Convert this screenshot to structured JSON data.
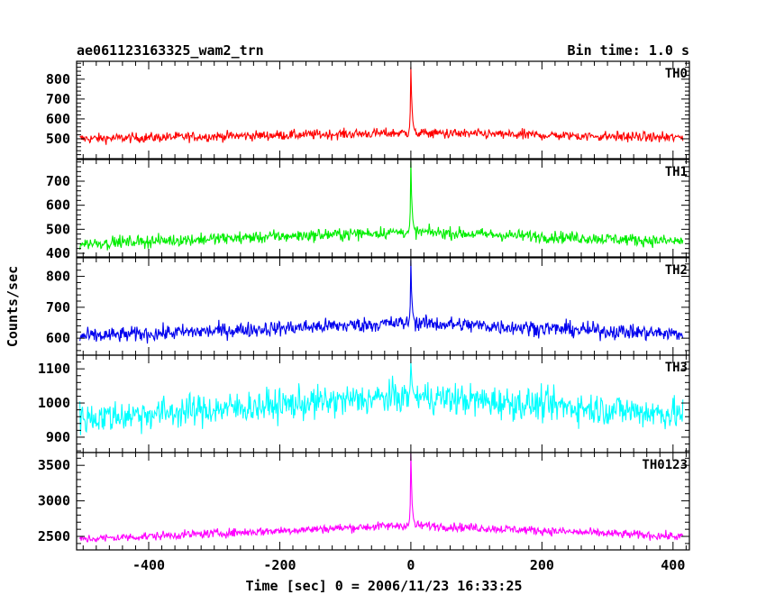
{
  "chart_data": {
    "type": "line",
    "title": "ae061123163325_wam2_trn",
    "subtitle": "Bin time: 1.0 s",
    "xlabel": "Time [sec] 0 = 2006/11/23 16:33:25",
    "ylabel": "Counts/sec",
    "xlim": [
      -510,
      425
    ],
    "x_ticks": [
      -400,
      -200,
      0,
      200,
      400
    ],
    "bin_time_s": 1.0,
    "grid": false,
    "panels": [
      {
        "label": "TH0",
        "color": "#ff0000",
        "ylim": [
          400,
          890
        ],
        "y_ticks": [
          500,
          600,
          700,
          800
        ],
        "y_tick_labels": [
          "500",
          "600",
          "700",
          "800"
        ],
        "baseline_at_edges": 500,
        "baseline_near_zero": 530,
        "noise_halfwidth": 45,
        "peak_time": 0,
        "peak_value": 890
      },
      {
        "label": "TH1",
        "color": "#00ee00",
        "ylim": [
          385,
          790
        ],
        "y_ticks": [
          400,
          500,
          600,
          700
        ],
        "y_tick_labels": [
          "400",
          "500",
          "600",
          "700"
        ],
        "baseline_at_edges": 440,
        "baseline_near_zero": 490,
        "noise_halfwidth": 45,
        "peak_time": 0,
        "peak_value": 790
      },
      {
        "label": "TH2",
        "color": "#0000ee",
        "ylim": [
          545,
          860
        ],
        "y_ticks": [
          600,
          700,
          800
        ],
        "y_tick_labels": [
          "600",
          "700",
          "800"
        ],
        "baseline_at_edges": 605,
        "baseline_near_zero": 650,
        "noise_halfwidth": 45,
        "peak_time": 0,
        "peak_value": 858
      },
      {
        "label": "TH3",
        "color": "#00ffff",
        "ylim": [
          855,
          1140
        ],
        "y_ticks": [
          900,
          1000,
          1100
        ],
        "y_tick_labels": [
          "900",
          "1000",
          "1100"
        ],
        "baseline_at_edges": 955,
        "baseline_near_zero": 1020,
        "noise_halfwidth": 85,
        "peak_time": 0,
        "peak_value": 1135
      },
      {
        "label": "TH0123",
        "color": "#ff00ff",
        "ylim": [
          2310,
          3680
        ],
        "y_ticks": [
          2500,
          3000,
          3500
        ],
        "y_tick_labels": [
          "2500",
          "3000",
          "3500"
        ],
        "baseline_at_edges": 2460,
        "baseline_near_zero": 2660,
        "noise_halfwidth": 110,
        "peak_time": 0,
        "peak_value": 3680
      }
    ]
  }
}
